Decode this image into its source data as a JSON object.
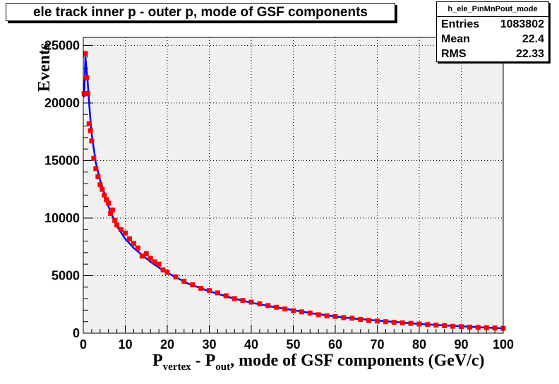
{
  "chart_data": {
    "type": "histogram",
    "title": "ele track inner p - outer p, mode of GSF components",
    "xlabel_main": "P",
    "xlabel_sub1": "vertex",
    "xlabel_mid": " - P",
    "xlabel_sub2": "out",
    "xlabel_tail": ", mode of GSF components (GeV/c)",
    "ylabel": "Events",
    "xlim": [
      0,
      100
    ],
    "ylim": [
      0,
      25700
    ],
    "x_ticks": [
      "0",
      "10",
      "20",
      "30",
      "40",
      "50",
      "60",
      "70",
      "80",
      "90",
      "100"
    ],
    "y_ticks": [
      "0",
      "5000",
      "10000",
      "15000",
      "20000",
      "25000"
    ],
    "grid": true,
    "stats": {
      "name": "h_ele_PinMnPout_mode",
      "rows": [
        {
          "label": "Entries",
          "value": "1083802"
        },
        {
          "label": "Mean",
          "value": "22.4"
        },
        {
          "label": "RMS",
          "value": "22.33"
        }
      ]
    },
    "series": [
      {
        "color": "#0000ff",
        "style": "line",
        "x": [
          0.2,
          0.5,
          1,
          1.5,
          2,
          3,
          4,
          5,
          6,
          7,
          8,
          10,
          12,
          14,
          16,
          18,
          20,
          25,
          30,
          35,
          40,
          45,
          50,
          55,
          60,
          65,
          70,
          75,
          80,
          85,
          90,
          95,
          100
        ],
        "y": [
          20500,
          24000,
          22000,
          19500,
          17300,
          14800,
          13300,
          12200,
          11000,
          10100,
          9300,
          8200,
          7400,
          6800,
          6200,
          5700,
          5250,
          4300,
          3650,
          3100,
          2650,
          2300,
          2000,
          1700,
          1450,
          1250,
          1100,
          950,
          800,
          700,
          600,
          500,
          420
        ]
      },
      {
        "color": "#ff0000",
        "style": "markers",
        "x": [
          0.2,
          0.5,
          0.8,
          1.1,
          1.4,
          1.7,
          2.0,
          2.5,
          3.0,
          3.5,
          4.0,
          4.5,
          5.0,
          5.5,
          6.0,
          6.5,
          7.0,
          7.5,
          8.0,
          9.0,
          10.0,
          11.0,
          12.0,
          13.0,
          14.0,
          15.0,
          16.0,
          17.0,
          18.0,
          19.0,
          20.0,
          22.0,
          24.0,
          26.0,
          28.0,
          30.0,
          32.0,
          34.0,
          36.0,
          38.0,
          40.0,
          42.0,
          44.0,
          46.0,
          48.0,
          50.0,
          52.0,
          54.0,
          56.0,
          58.0,
          60.0,
          62.0,
          64.0,
          66.0,
          68.0,
          70.0,
          72.0,
          74.0,
          76.0,
          78.0,
          80.0,
          82.0,
          84.0,
          86.0,
          88.0,
          90.0,
          92.0,
          94.0,
          96.0,
          98.0,
          100.0
        ],
        "y": [
          20800,
          24300,
          22200,
          20800,
          18200,
          17600,
          16700,
          15200,
          14300,
          13600,
          12900,
          12500,
          12000,
          11600,
          11300,
          10400,
          10700,
          9800,
          9400,
          9000,
          8700,
          8200,
          7800,
          7400,
          6700,
          6900,
          6500,
          6200,
          6000,
          5500,
          5300,
          4900,
          4500,
          4200,
          3900,
          3700,
          3500,
          3250,
          3000,
          2850,
          2700,
          2550,
          2400,
          2250,
          2100,
          1950,
          1850,
          1750,
          1600,
          1500,
          1450,
          1350,
          1300,
          1200,
          1100,
          1050,
          1000,
          950,
          900,
          850,
          800,
          750,
          700,
          650,
          600,
          570,
          530,
          500,
          480,
          450,
          420
        ]
      }
    ]
  }
}
